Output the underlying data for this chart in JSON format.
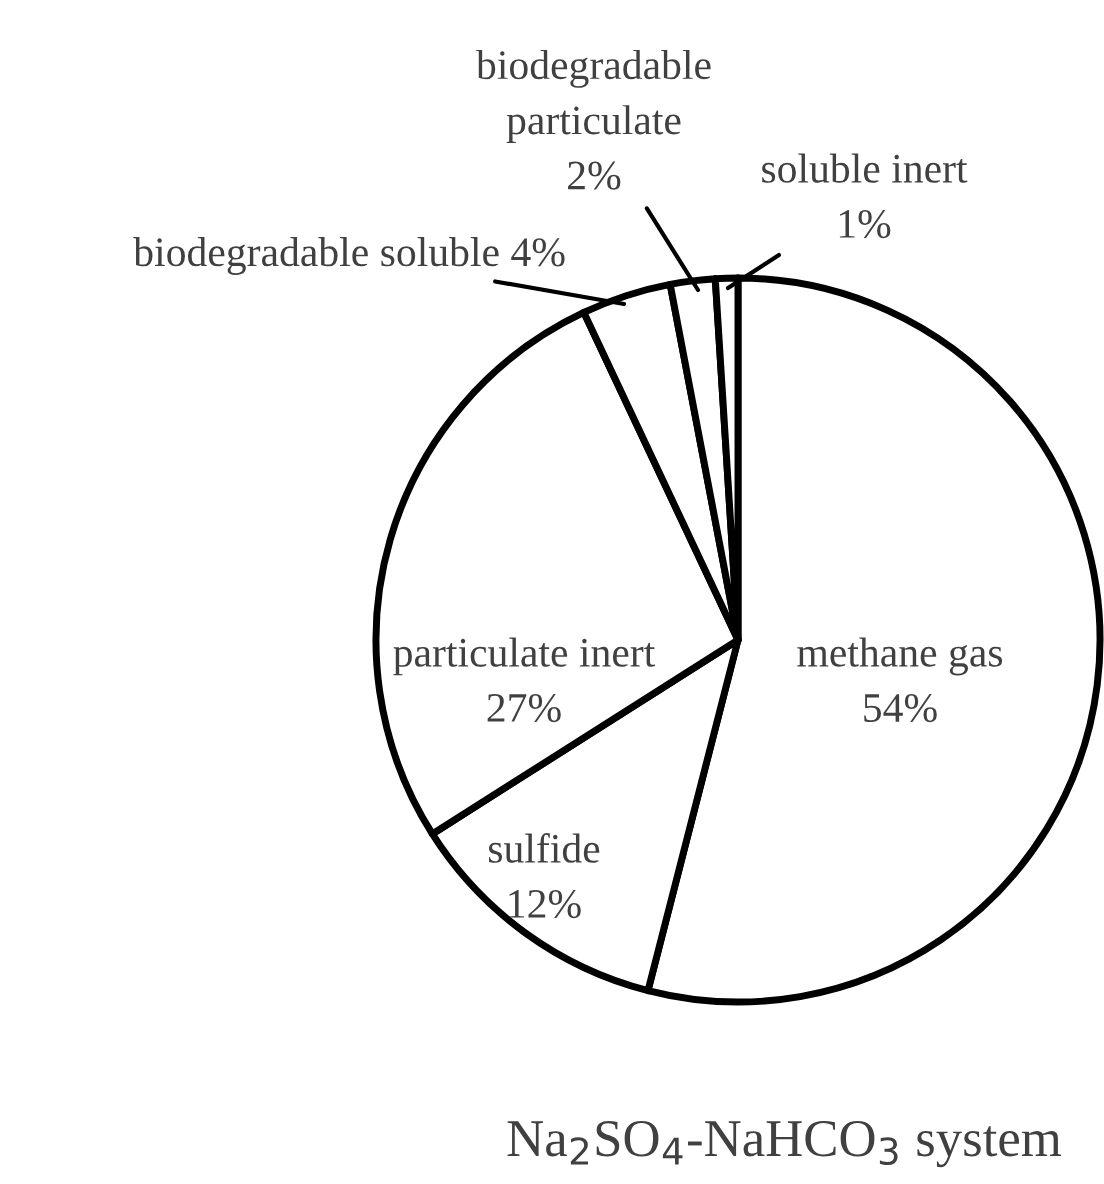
{
  "chart_data": {
    "type": "pie",
    "title": "Na$_{2}$SO$_{4}$-NaHCO$_{3}$ system",
    "categories": [
      "methane gas",
      "sulfide",
      "particulate inert",
      "biodegradable soluble",
      "biodegradable\nparticulate",
      "soluble inert"
    ],
    "values": [
      54,
      12,
      27,
      4,
      2,
      1
    ],
    "value_labels": [
      "54%",
      "12%",
      "27%",
      "4%",
      "2%",
      "1%"
    ],
    "colors": [
      "#ffffff",
      "#ffffff",
      "#ffffff",
      "#ffffff",
      "#ffffff",
      "#ffffff"
    ],
    "legend": false
  }
}
